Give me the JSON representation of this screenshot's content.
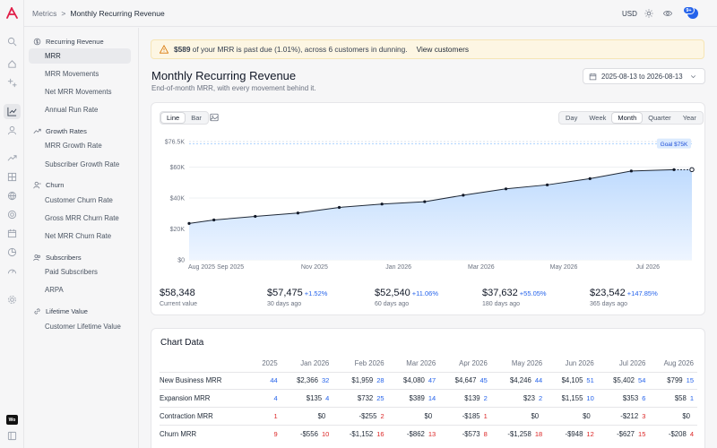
{
  "app": {
    "logo": "brand-a-logo",
    "icons": [
      "search-icon",
      "home-icon",
      "sparkle-icon",
      "chart-line-icon",
      "users-icon",
      "trend-icon",
      "grid-icon",
      "globe-icon",
      "target-icon",
      "calendar-icon",
      "pie-icon",
      "gauge-icon",
      "settings-icon",
      "panel-icon"
    ],
    "workspace_badge": "Wo"
  },
  "breadcrumb": {
    "parent": "Metrics",
    "separator": ">",
    "current": "Monthly Recurring Revenue"
  },
  "topbar": {
    "currency": "USD",
    "notification_count": "9+"
  },
  "sidebar": {
    "sections": [
      {
        "title": "Recurring Revenue",
        "icon": "dollar-circle-icon",
        "items": [
          "MRR",
          "MRR Movements",
          "Net MRR Movements",
          "Annual Run Rate"
        ]
      },
      {
        "title": "Growth Rates",
        "icon": "trend-up-icon",
        "items": [
          "MRR Growth Rate",
          "Subscriber Growth Rate"
        ]
      },
      {
        "title": "Churn",
        "icon": "user-minus-icon",
        "items": [
          "Customer Churn Rate",
          "Gross MRR Churn Rate",
          "Net MRR Churn Rate"
        ]
      },
      {
        "title": "Subscribers",
        "icon": "users-icon",
        "items": [
          "Paid Subscribers",
          "ARPA"
        ]
      },
      {
        "title": "Lifetime Value",
        "icon": "link-icon",
        "items": [
          "Customer Lifetime Value"
        ]
      }
    ],
    "active": "MRR"
  },
  "alert": {
    "icon": "warning-icon",
    "amount": "$589",
    "message": " of your MRR is past due (1.01%), across 6 customers in dunning.",
    "link": "View customers"
  },
  "page": {
    "title": "Monthly Recurring Revenue",
    "subtitle": "End-of-month MRR, with every movement behind it.",
    "date_range": "2025-08-13 to 2026-08-13"
  },
  "chart_controls": {
    "types": [
      "Line",
      "Bar"
    ],
    "selected_type": "Line",
    "intervals": [
      "Day",
      "Week",
      "Month",
      "Quarter",
      "Year"
    ],
    "selected_interval": "Month"
  },
  "chart_data": {
    "type": "area",
    "x_ticks": [
      "Aug 2025",
      "Sep 2025",
      "Nov 2025",
      "Jan 2026",
      "Mar 2026",
      "May 2026",
      "Jul 2026"
    ],
    "y_ticks": [
      "$76.5K",
      "$60K",
      "$40K",
      "$20K",
      "$0"
    ],
    "ylim": [
      0,
      76500
    ],
    "goal": {
      "label": "Goal $75K",
      "value": 75000
    },
    "series": [
      {
        "x": [
          "2025-08-13",
          "2025-08-31",
          "2025-09-30",
          "2025-10-31",
          "2025-11-30",
          "2025-12-31",
          "2026-01-31",
          "2026-02-28",
          "2026-03-31",
          "2026-04-30",
          "2026-05-31",
          "2026-06-30",
          "2026-07-31",
          "2026-08-13"
        ],
        "values": [
          23542,
          25800,
          28100,
          30300,
          33900,
          36100,
          37632,
          41800,
          45900,
          48500,
          52540,
          57475,
          58348,
          58348
        ]
      }
    ],
    "grid": true,
    "accent": "#3b82f6",
    "fill": "#dbeafe"
  },
  "stats": [
    {
      "value": "$58,348",
      "delta": "",
      "label": "Current value"
    },
    {
      "value": "$57,475",
      "delta": "+1.52%",
      "label": "30 days ago"
    },
    {
      "value": "$52,540",
      "delta": "+11.06%",
      "label": "60 days ago"
    },
    {
      "value": "$37,632",
      "delta": "+55.05%",
      "label": "180 days ago"
    },
    {
      "value": "$23,542",
      "delta": "+147.85%",
      "label": "365 days ago"
    }
  ],
  "table": {
    "title": "Chart Data",
    "columns": [
      "",
      "2025",
      "Jan 2026",
      "Feb 2026",
      "Mar 2026",
      "Apr 2026",
      "May 2026",
      "Jun 2026",
      "Jul 2026",
      "Aug 2026"
    ],
    "rows": [
      {
        "label": "New Business MRR",
        "cells": [
          [
            "",
            "44"
          ],
          [
            "$2,366",
            "32"
          ],
          [
            "$1,959",
            "28"
          ],
          [
            "$4,080",
            "47"
          ],
          [
            "$4,647",
            "45"
          ],
          [
            "$4,246",
            "44"
          ],
          [
            "$4,105",
            "51"
          ],
          [
            "$5,402",
            "54"
          ],
          [
            "$799",
            "15"
          ]
        ],
        "tone": "pos"
      },
      {
        "label": "Expansion MRR",
        "cells": [
          [
            "",
            "4"
          ],
          [
            "$135",
            "4"
          ],
          [
            "$732",
            "25"
          ],
          [
            "$389",
            "14"
          ],
          [
            "$139",
            "2"
          ],
          [
            "$23",
            "2"
          ],
          [
            "$1,155",
            "10"
          ],
          [
            "$353",
            "6"
          ],
          [
            "$58",
            "1"
          ]
        ],
        "tone": "pos"
      },
      {
        "label": "Contraction MRR",
        "cells": [
          [
            "",
            "1"
          ],
          [
            "$0",
            ""
          ],
          [
            "-$255",
            "2"
          ],
          [
            "$0",
            ""
          ],
          [
            "-$185",
            "1"
          ],
          [
            "$0",
            ""
          ],
          [
            "$0",
            ""
          ],
          [
            "-$212",
            "3"
          ],
          [
            "$0",
            ""
          ]
        ],
        "tone": "neg"
      },
      {
        "label": "Churn MRR",
        "cells": [
          [
            "",
            "9"
          ],
          [
            "-$556",
            "10"
          ],
          [
            "-$1,152",
            "16"
          ],
          [
            "-$862",
            "13"
          ],
          [
            "-$573",
            "8"
          ],
          [
            "-$1,258",
            "18"
          ],
          [
            "-$948",
            "12"
          ],
          [
            "-$627",
            "15"
          ],
          [
            "-$208",
            "4"
          ]
        ],
        "tone": "neg"
      }
    ]
  }
}
